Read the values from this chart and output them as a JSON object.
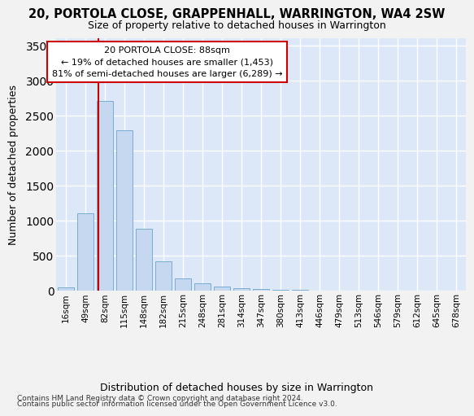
{
  "title": "20, PORTOLA CLOSE, GRAPPENHALL, WARRINGTON, WA4 2SW",
  "subtitle": "Size of property relative to detached houses in Warrington",
  "xlabel": "Distribution of detached houses by size in Warrington",
  "ylabel": "Number of detached properties",
  "categories": [
    "16sqm",
    "49sqm",
    "82sqm",
    "115sqm",
    "148sqm",
    "182sqm",
    "215sqm",
    "248sqm",
    "281sqm",
    "314sqm",
    "347sqm",
    "380sqm",
    "413sqm",
    "446sqm",
    "479sqm",
    "513sqm",
    "546sqm",
    "579sqm",
    "612sqm",
    "645sqm",
    "678sqm"
  ],
  "values": [
    52,
    1100,
    2710,
    2290,
    880,
    415,
    175,
    100,
    55,
    35,
    20,
    15,
    8,
    3,
    2,
    1,
    1,
    0,
    0,
    0,
    0
  ],
  "bar_color": "#c5d8f0",
  "bar_edge_color": "#7aadd4",
  "vline_color": "#cc0000",
  "annotation_line1": "20 PORTOLA CLOSE: 88sqm",
  "annotation_line2": "← 19% of detached houses are smaller (1,453)",
  "annotation_line3": "81% of semi-detached houses are larger (6,289) →",
  "annotation_box_edge": "#cc0000",
  "ylim": [
    0,
    3600
  ],
  "yticks": [
    0,
    500,
    1000,
    1500,
    2000,
    2500,
    3000,
    3500
  ],
  "bg_color": "#dce8f8",
  "grid_color": "#ffffff",
  "fig_bg": "#f2f2f2",
  "footnote1": "Contains HM Land Registry data © Crown copyright and database right 2024.",
  "footnote2": "Contains public sector information licensed under the Open Government Licence v3.0."
}
